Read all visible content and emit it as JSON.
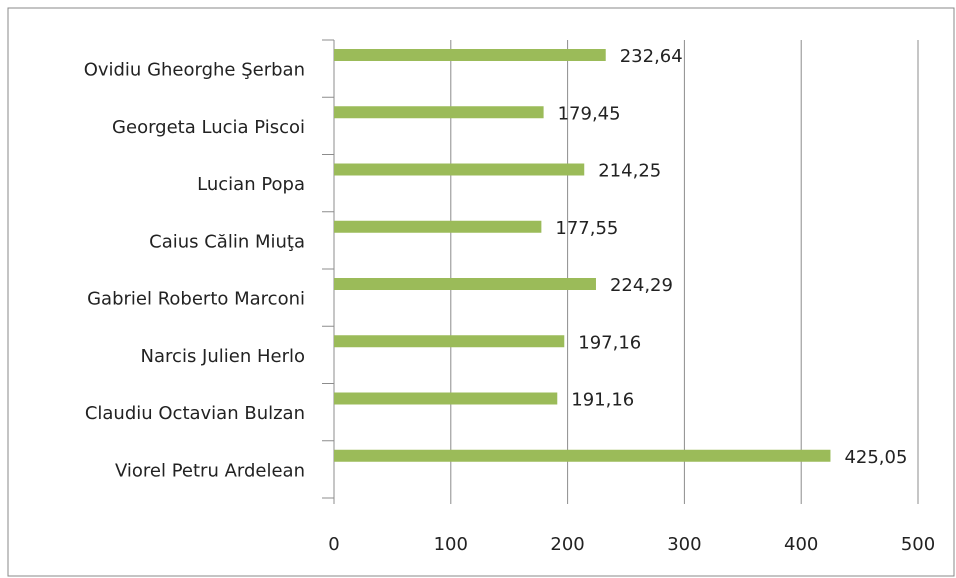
{
  "chart_data": {
    "type": "bar",
    "orientation": "horizontal",
    "categories": [
      "Ovidiu Gheorghe Şerban",
      "Georgeta Lucia Piscoi",
      "Lucian Popa",
      "Caius Călin Miuţa",
      "Gabriel Roberto  Marconi",
      "Narcis Julien Herlo",
      "Claudiu Octavian Bulzan",
      "Viorel Petru Ardelean"
    ],
    "values": [
      232.64,
      179.45,
      214.25,
      177.55,
      224.29,
      197.16,
      191.16,
      425.05
    ],
    "value_labels": [
      "232,64",
      "179,45",
      "214,25",
      "177,55",
      "224,29",
      "197,16",
      "191,16",
      "425,05"
    ],
    "color": "#9bbb59",
    "xlim": [
      0,
      500
    ],
    "xticks": [
      0,
      100,
      200,
      300,
      400,
      500
    ],
    "grid": true
  }
}
